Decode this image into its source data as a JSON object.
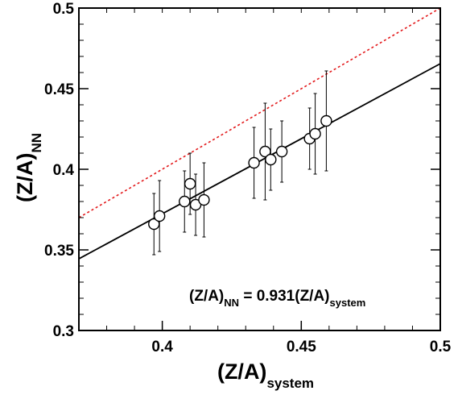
{
  "chart_data": {
    "type": "scatter",
    "xlabel": {
      "main": "(Z/A)",
      "sub": "system"
    },
    "ylabel": {
      "main": "(Z/A)",
      "sub": "NN"
    },
    "xlim": [
      0.37,
      0.5
    ],
    "ylim": [
      0.3,
      0.5
    ],
    "x_ticks": [
      "0.4",
      "0.45",
      "0.5"
    ],
    "x_tick_values": [
      0.4,
      0.45,
      0.5
    ],
    "y_ticks": [
      "0.3",
      "0.35",
      "0.4",
      "0.45",
      "0.5"
    ],
    "y_tick_values": [
      0.3,
      0.35,
      0.4,
      0.45,
      0.5
    ],
    "grid": false,
    "annotation": {
      "main": "(Z/A)",
      "sub1": "NN",
      "mid": " = 0.931(Z/A)",
      "sub2": "system"
    },
    "fit_line": {
      "slope": 0.931,
      "intercept": 0,
      "style": "solid",
      "color": "#000000"
    },
    "reference_line": {
      "slope": 1,
      "intercept": 0,
      "style": "dotted",
      "color": "#e31a1c"
    },
    "points": [
      {
        "x": 0.397,
        "y": 0.366,
        "err": 0.019
      },
      {
        "x": 0.399,
        "y": 0.371,
        "err": 0.022
      },
      {
        "x": 0.408,
        "y": 0.38,
        "err": 0.019
      },
      {
        "x": 0.41,
        "y": 0.391,
        "err": 0.019
      },
      {
        "x": 0.412,
        "y": 0.378,
        "err": 0.019
      },
      {
        "x": 0.415,
        "y": 0.381,
        "err": 0.023
      },
      {
        "x": 0.433,
        "y": 0.404,
        "err": 0.022
      },
      {
        "x": 0.437,
        "y": 0.411,
        "err": 0.03
      },
      {
        "x": 0.439,
        "y": 0.406,
        "err": 0.019
      },
      {
        "x": 0.443,
        "y": 0.411,
        "err": 0.019
      },
      {
        "x": 0.453,
        "y": 0.419,
        "err": 0.019
      },
      {
        "x": 0.455,
        "y": 0.422,
        "err": 0.025
      },
      {
        "x": 0.459,
        "y": 0.43,
        "err": 0.031
      }
    ]
  }
}
